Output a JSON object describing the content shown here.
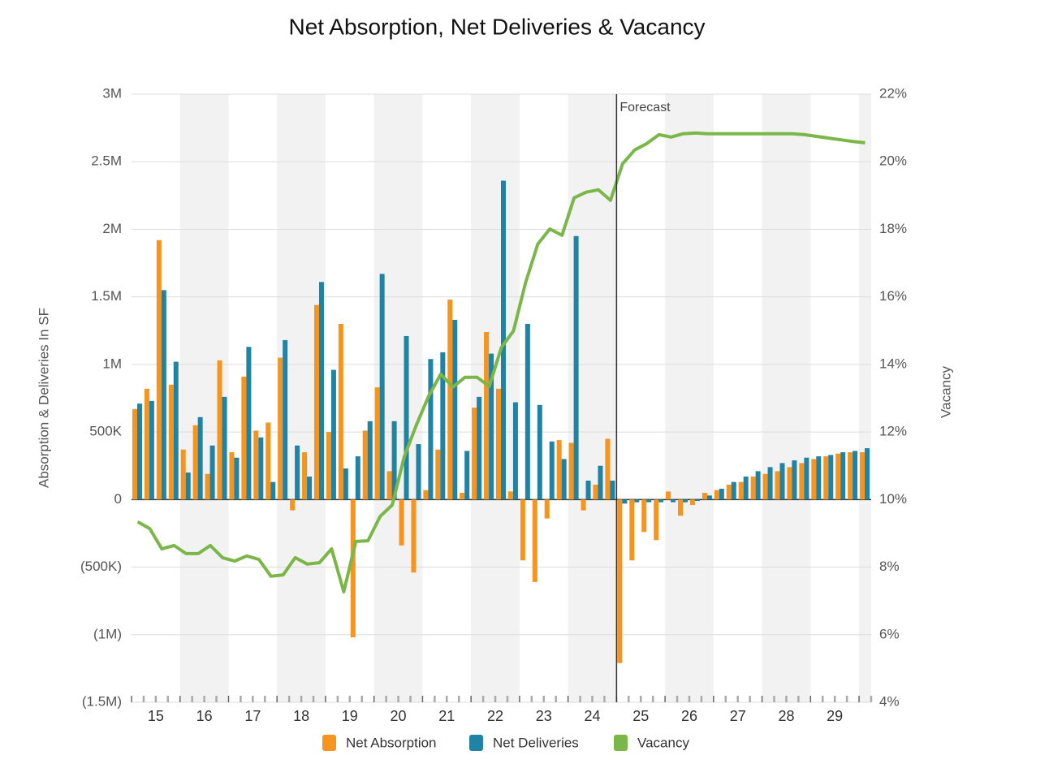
{
  "chart_data": {
    "type": "bar",
    "title": "Net Absorption, Net Deliveries & Vacancy",
    "y_label": "Absorption & Deliveries In SF",
    "y2_label": "Vacancy",
    "categories": [
      null,
      "15",
      null,
      null,
      null,
      "16",
      null,
      null,
      null,
      "17",
      null,
      null,
      null,
      "18",
      null,
      null,
      null,
      "19",
      null,
      null,
      null,
      "20",
      null,
      null,
      null,
      "21",
      null,
      null,
      null,
      "22",
      null,
      null,
      null,
      "23",
      null,
      null,
      null,
      "24",
      null,
      null,
      null,
      "25",
      null,
      null,
      null,
      "26",
      null,
      null,
      null,
      "27",
      null,
      null,
      null,
      "28",
      null,
      null,
      null,
      "29",
      null,
      null,
      null
    ],
    "series": [
      {
        "name": "Net Absorption",
        "type": "bar",
        "color": "#f7941d",
        "values": [
          670000,
          820000,
          1920000,
          850000,
          370000,
          550000,
          190000,
          1030000,
          350000,
          910000,
          510000,
          570000,
          1050000,
          -80000,
          350000,
          1440000,
          500000,
          1300000,
          -1020000,
          510000,
          830000,
          210000,
          -340000,
          -540000,
          70000,
          370000,
          1480000,
          50000,
          680000,
          1240000,
          820000,
          60000,
          -450000,
          -610000,
          -140000,
          440000,
          420000,
          -80000,
          110000,
          450000,
          -1210000,
          -450000,
          -240000,
          -300000,
          60000,
          -120000,
          -40000,
          50000,
          70000,
          110000,
          130000,
          170000,
          190000,
          210000,
          240000,
          270000,
          300000,
          320000,
          340000,
          350000,
          350000
        ]
      },
      {
        "name": "Net Deliveries",
        "type": "bar",
        "color": "#1f83a6",
        "values": [
          710000,
          730000,
          1550000,
          1020000,
          200000,
          610000,
          400000,
          760000,
          310000,
          1130000,
          460000,
          130000,
          1180000,
          400000,
          170000,
          1610000,
          960000,
          230000,
          320000,
          580000,
          1670000,
          580000,
          1210000,
          410000,
          1040000,
          1090000,
          1330000,
          360000,
          760000,
          1080000,
          2360000,
          720000,
          1300000,
          700000,
          430000,
          300000,
          1950000,
          140000,
          250000,
          140000,
          -30000,
          -20000,
          -20000,
          -20000,
          -20000,
          -20000,
          -10000,
          30000,
          80000,
          130000,
          170000,
          210000,
          240000,
          270000,
          290000,
          310000,
          320000,
          330000,
          350000,
          360000,
          380000
        ]
      },
      {
        "name": "Vacancy",
        "type": "line",
        "axis": "y2",
        "color": "#7ab648",
        "values": [
          9.34,
          9.14,
          8.54,
          8.64,
          8.4,
          8.4,
          8.64,
          8.28,
          8.18,
          8.33,
          8.23,
          7.73,
          7.77,
          8.28,
          8.09,
          8.13,
          8.54,
          7.27,
          8.76,
          8.78,
          9.5,
          9.84,
          11.28,
          12.22,
          13.06,
          13.71,
          13.33,
          13.62,
          13.62,
          13.35,
          14.5,
          14.99,
          16.43,
          17.56,
          18.01,
          17.82,
          18.93,
          19.1,
          19.17,
          18.86,
          19.94,
          20.35,
          20.54,
          20.8,
          20.73,
          20.83,
          20.85,
          20.83,
          20.83,
          20.83,
          20.83,
          20.83,
          20.83,
          20.83,
          20.83,
          20.8,
          20.75,
          20.7,
          20.65,
          20.6,
          20.56
        ]
      }
    ],
    "annotations": [
      {
        "label": "Forecast",
        "category_index": 40
      }
    ],
    "ylim": [
      -1500000,
      3000000
    ],
    "yticks": [
      {
        "value": -1500000,
        "label": "(1.5M)"
      },
      {
        "value": -1000000,
        "label": "(1M)"
      },
      {
        "value": -500000,
        "label": "(500K)"
      },
      0,
      {
        "value": 500000,
        "label": "500K"
      },
      {
        "value": 1000000,
        "label": "1M"
      },
      {
        "value": 1500000,
        "label": "1.5M"
      },
      {
        "value": 2000000,
        "label": "2M"
      },
      {
        "value": 2500000,
        "label": "2.5M"
      },
      {
        "value": 3000000,
        "label": "3M"
      }
    ],
    "y2lim": [
      4,
      22
    ],
    "y2ticks": [
      {
        "value": 4,
        "label": "4%"
      },
      {
        "value": 6,
        "label": "6%"
      },
      {
        "value": 8,
        "label": "8%"
      },
      {
        "value": 10,
        "label": "10%"
      },
      {
        "value": 12,
        "label": "12%"
      },
      {
        "value": 14,
        "label": "14%"
      },
      {
        "value": 16,
        "label": "16%"
      },
      {
        "value": 18,
        "label": "18%"
      },
      {
        "value": 20,
        "label": "20%"
      },
      {
        "value": 22,
        "label": "22%"
      }
    ],
    "grid": true
  }
}
